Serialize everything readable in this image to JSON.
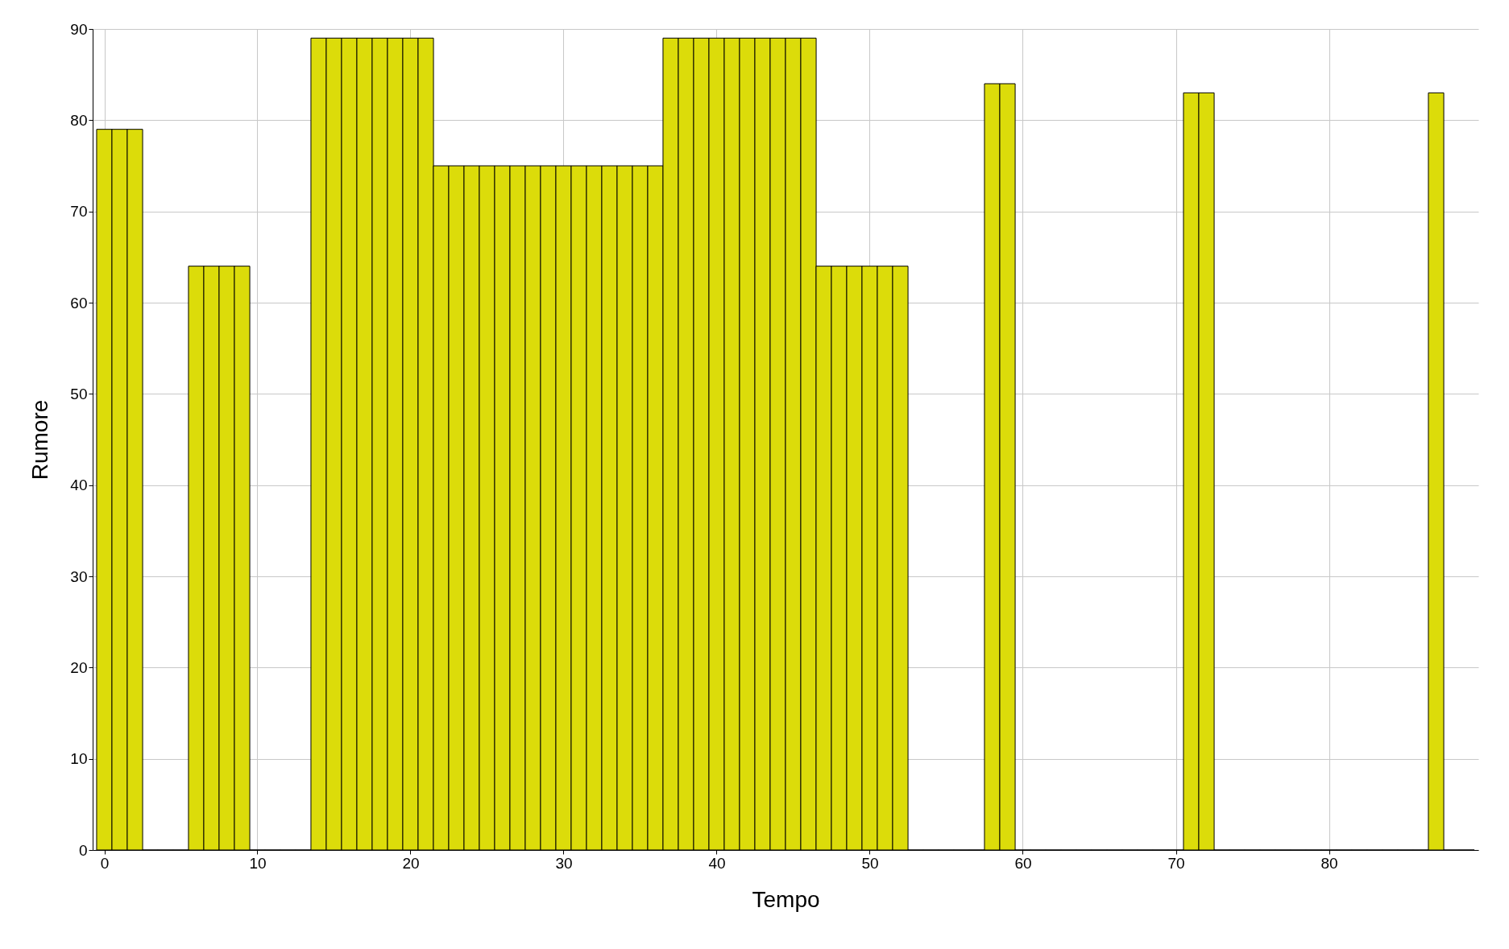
{
  "chart_data": {
    "type": "bar",
    "xlabel": "Tempo",
    "ylabel": "Rumore",
    "x": [
      0,
      1,
      2,
      3,
      4,
      5,
      6,
      7,
      8,
      9,
      10,
      11,
      12,
      13,
      14,
      15,
      16,
      17,
      18,
      19,
      20,
      21,
      22,
      23,
      24,
      25,
      26,
      27,
      28,
      29,
      30,
      31,
      32,
      33,
      34,
      35,
      36,
      37,
      38,
      39,
      40,
      41,
      42,
      43,
      44,
      45,
      46,
      47,
      48,
      49,
      50,
      51,
      52,
      53,
      54,
      55,
      56,
      57,
      58,
      59,
      60,
      61,
      62,
      63,
      64,
      65,
      66,
      67,
      68,
      69,
      70,
      71,
      72,
      73,
      74,
      75,
      76,
      77,
      78,
      79,
      80,
      81,
      82,
      83,
      84,
      85,
      86,
      87,
      88,
      89
    ],
    "values": [
      79,
      79,
      79,
      0,
      0,
      0,
      64,
      64,
      64,
      64,
      0,
      0,
      0,
      0,
      89,
      89,
      89,
      89,
      89,
      89,
      89,
      89,
      75,
      75,
      75,
      75,
      75,
      75,
      75,
      75,
      75,
      75,
      75,
      75,
      75,
      75,
      75,
      89,
      89,
      89,
      89,
      89,
      89,
      89,
      89,
      89,
      89,
      64,
      64,
      64,
      64,
      64,
      64,
      0,
      0,
      0,
      0,
      0,
      84,
      84,
      0,
      0,
      0,
      0,
      0,
      0,
      0,
      0,
      0,
      0,
      0,
      83,
      83,
      0,
      0,
      0,
      0,
      0,
      0,
      0,
      0,
      0,
      0,
      0,
      0,
      0,
      0,
      83,
      0,
      0
    ],
    "color": "#dcdc0a",
    "xlim": [
      -0.5,
      89.5
    ],
    "xticks": [
      0,
      10,
      20,
      30,
      40,
      50,
      60,
      70,
      80
    ],
    "ylim": [
      0,
      90
    ],
    "yticks": [
      0,
      10,
      20,
      30,
      40,
      50,
      60,
      70,
      80,
      90
    ],
    "grid": true
  }
}
